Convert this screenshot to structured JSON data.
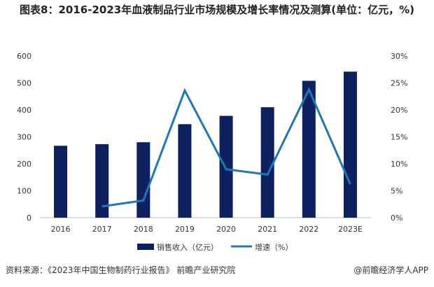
{
  "title": "图表8：2016-2023年血液制品行业市场规模及增长率情况及测算(单位：亿元，%)",
  "source": "资料来源：《2023年中国生物制药行业报告》 前瞻产业研究院",
  "brand": "@前瞻经济学人APP",
  "watermark": "前瞻产业研究院",
  "chart_data": {
    "type": "bar+line",
    "title": "图表8：2016-2023年血液制品行业市场规模及增长率情况及测算(单位：亿元，%)",
    "categories": [
      "2016",
      "2017",
      "2018",
      "2019",
      "2020",
      "2021",
      "2022",
      "2023E"
    ],
    "left_axis": {
      "ylim": [
        0,
        600
      ],
      "ticks": [
        "0",
        "100",
        "200",
        "300",
        "400",
        "500",
        "600"
      ]
    },
    "right_axis": {
      "ylim": [
        0,
        30
      ],
      "ticks": [
        "0%",
        "5%",
        "10%",
        "15%",
        "20%",
        "25%",
        "30%"
      ]
    },
    "grid": false,
    "legend_position": "bottom",
    "series": [
      {
        "name": "销售收入（亿元）",
        "type": "bar",
        "axis": "left",
        "color": "#0d2160",
        "values": [
          267,
          273,
          280,
          347,
          378,
          410,
          508,
          542
        ]
      },
      {
        "name": "增速（%）",
        "type": "line",
        "axis": "right",
        "color": "#1f77b8",
        "values": [
          null,
          2.1,
          3.2,
          23.6,
          9.0,
          8.0,
          23.8,
          6.2
        ]
      }
    ]
  }
}
